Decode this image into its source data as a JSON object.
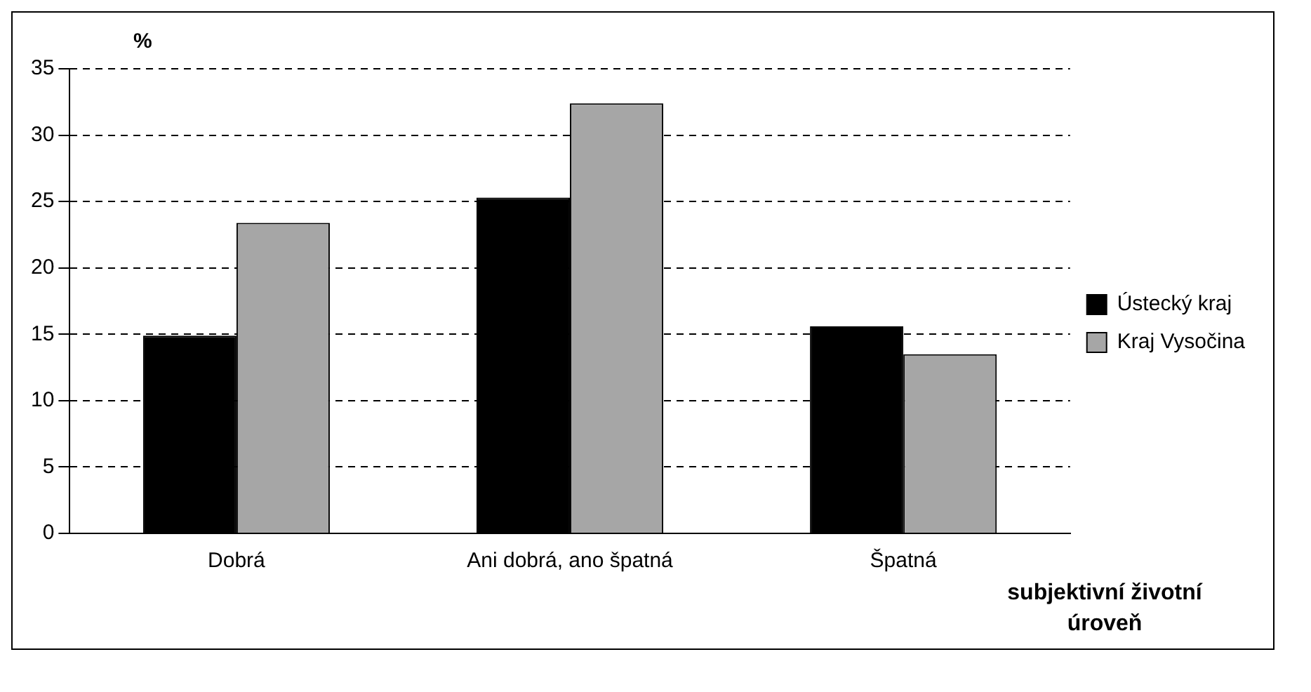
{
  "chart_data": {
    "type": "bar",
    "ylabel": "%",
    "xlabel": "subjektivní životní úroveň",
    "categories": [
      "Dobrá",
      "Ani dobrá, ano špatná",
      "Špatná"
    ],
    "series": [
      {
        "name": "Ústecký kraj",
        "color": "#000000",
        "values": [
          14.9,
          25.3,
          15.6
        ]
      },
      {
        "name": "Kraj Vysočina",
        "color": "#a6a6a6",
        "values": [
          23.4,
          32.4,
          13.5
        ]
      }
    ],
    "ylim": [
      0,
      35
    ],
    "yticks": [
      0,
      5,
      10,
      15,
      20,
      25,
      30,
      35
    ],
    "grid": "y",
    "legend": "right"
  }
}
